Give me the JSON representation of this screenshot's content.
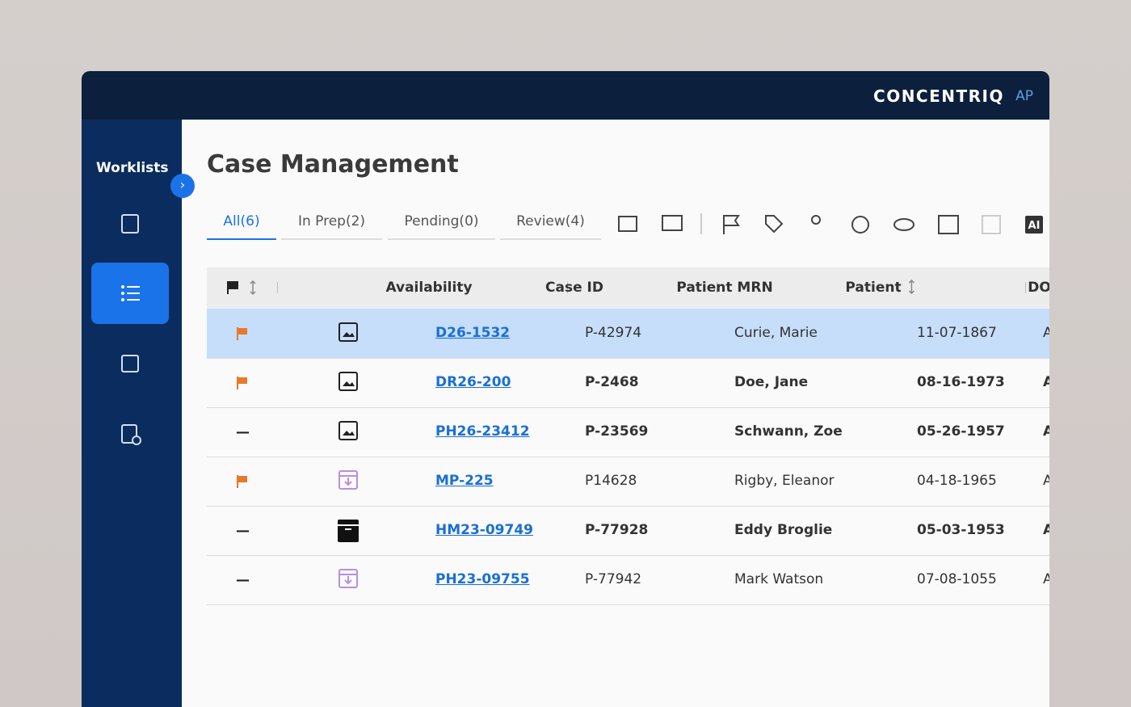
{
  "brand": {
    "name": "CONCENTRIQ",
    "product": "AP"
  },
  "sidebar": {
    "title": "Worklists",
    "active_item": 1
  },
  "page": {
    "title": "Case Management"
  },
  "tabs": {
    "items": [
      "All(6)",
      "In Prep(2)",
      "Pending(0)",
      "Review(4)"
    ],
    "active": 0
  },
  "toolbar": {
    "ai_label": "AI"
  },
  "table": {
    "headers": [
      "Availability",
      "Case ID",
      "Patient MRN",
      "Patient",
      "DOB"
    ],
    "no_flag_mark": "—",
    "rows": [
      {
        "flagged": true,
        "availability": "image",
        "case_id": "D26-1532",
        "mrn": "P-42974",
        "patient": "Curie, Marie",
        "dob": "11-07-1867",
        "next": "A",
        "bold": false,
        "selected": true
      },
      {
        "flagged": true,
        "availability": "image",
        "case_id": "DR26-200",
        "mrn": "P-2468",
        "patient": "Doe, Jane",
        "dob": "08-16-1973",
        "next": "A",
        "bold": true,
        "selected": false
      },
      {
        "flagged": false,
        "availability": "image",
        "case_id": "PH26-23412",
        "mrn": "P-23569",
        "patient": "Schwann, Zoe",
        "dob": "05-26-1957",
        "next": "A",
        "bold": true,
        "selected": false
      },
      {
        "flagged": true,
        "availability": "download",
        "case_id": "MP-225",
        "mrn": "P14628",
        "patient": "Rigby, Eleanor",
        "dob": "04-18-1965",
        "next": "A",
        "bold": false,
        "selected": false
      },
      {
        "flagged": false,
        "availability": "archive",
        "case_id": "HM23-09749",
        "mrn": "P-77928",
        "patient": "Eddy Broglie",
        "dob": "05-03-1953",
        "next": "A",
        "bold": true,
        "selected": false
      },
      {
        "flagged": false,
        "availability": "download",
        "case_id": "PH23-09755",
        "mrn": "P-77942",
        "patient": "Mark Watson",
        "dob": "07-08-1055",
        "next": "A",
        "bold": false,
        "selected": false
      }
    ]
  }
}
